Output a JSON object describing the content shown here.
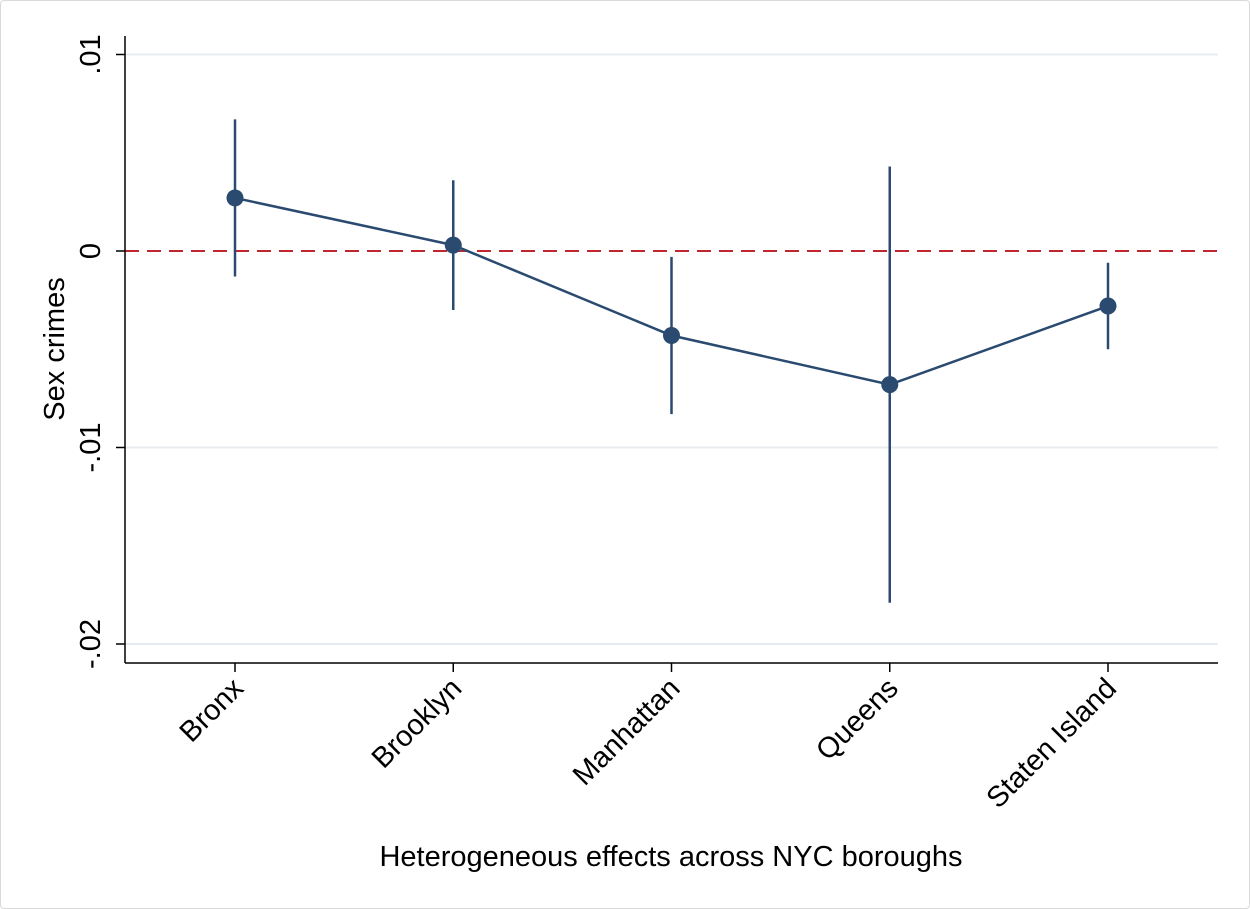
{
  "chart_data": {
    "type": "scatter",
    "xlabel": "Heterogeneous effects across NYC boroughs",
    "ylabel": "Sex crimes",
    "categories": [
      "Bronx",
      "Brooklyn",
      "Manhattan",
      "Queens",
      "Staten Island"
    ],
    "y_ticks": [
      {
        "value": 0.01,
        "label": ".01"
      },
      {
        "value": 0,
        "label": "0"
      },
      {
        "value": -0.01,
        "label": "-.01"
      },
      {
        "value": -0.02,
        "label": "-.02"
      }
    ],
    "ylim": [
      -0.021,
      0.01
    ],
    "grid": true,
    "reference_line": {
      "y": 0,
      "style": "dashed",
      "color": "#c0262d"
    },
    "series": [
      {
        "estimates": [
          0.0027,
          0.0003,
          -0.0043,
          -0.0068,
          -0.0028
        ],
        "ci_low": [
          -0.0013,
          -0.003,
          -0.0083,
          -0.0179,
          -0.005
        ],
        "ci_high": [
          0.0067,
          0.0036,
          -0.0003,
          0.0043,
          -0.0006
        ],
        "color": "#2a4a70"
      }
    ]
  }
}
